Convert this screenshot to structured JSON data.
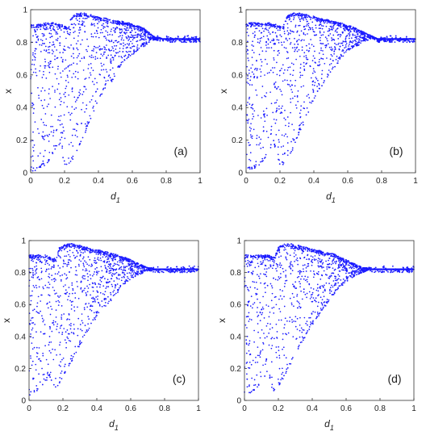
{
  "figure": {
    "panel_labels": [
      "(a)",
      "(b)",
      "(c)",
      "(d)"
    ]
  },
  "chart_data": [
    {
      "type": "scatter",
      "panel_label": "(a)",
      "xlabel": "d1",
      "ylabel": "x",
      "xlim": [
        0,
        1
      ],
      "ylim": [
        0,
        1
      ],
      "xticks": [
        "0",
        "0.2",
        "0.4",
        "0.6",
        "0.8",
        "1"
      ],
      "yticks": [
        "0",
        "0.2",
        "0.4",
        "0.6",
        "0.8",
        "1"
      ],
      "grid": false,
      "point_color": "#1a1aff",
      "x": [
        0.0,
        0.02,
        0.04,
        0.06,
        0.08,
        0.1,
        0.12,
        0.14,
        0.16,
        0.18,
        0.2,
        0.22,
        0.24,
        0.26,
        0.28,
        0.3,
        0.32,
        0.34,
        0.36,
        0.38,
        0.4,
        0.42,
        0.44,
        0.46,
        0.48,
        0.5,
        0.52,
        0.54,
        0.56,
        0.58,
        0.6,
        0.62,
        0.64,
        0.66,
        0.68,
        0.7,
        0.72,
        0.74,
        0.76,
        0.78,
        0.8,
        0.82,
        0.84,
        0.86,
        0.88,
        0.9,
        0.92,
        0.94,
        0.96,
        0.98,
        1.0
      ],
      "y_min": [
        0.01,
        0.01,
        0.02,
        0.03,
        0.04,
        0.06,
        0.09,
        0.13,
        0.18,
        0.14,
        0.05,
        0.05,
        0.07,
        0.1,
        0.14,
        0.19,
        0.24,
        0.29,
        0.34,
        0.39,
        0.44,
        0.48,
        0.52,
        0.55,
        0.56,
        0.6,
        0.64,
        0.67,
        0.69,
        0.71,
        0.72,
        0.74,
        0.76,
        0.77,
        0.78,
        0.8,
        0.81,
        0.82,
        0.82,
        0.82,
        0.82,
        0.82,
        0.82,
        0.82,
        0.82,
        0.82,
        0.82,
        0.82,
        0.82,
        0.82,
        0.82
      ],
      "y_max": [
        0.91,
        0.91,
        0.91,
        0.91,
        0.92,
        0.92,
        0.92,
        0.92,
        0.91,
        0.91,
        0.9,
        0.89,
        0.96,
        0.97,
        0.98,
        0.98,
        0.98,
        0.97,
        0.97,
        0.96,
        0.96,
        0.95,
        0.95,
        0.94,
        0.94,
        0.93,
        0.93,
        0.93,
        0.92,
        0.92,
        0.91,
        0.9,
        0.9,
        0.89,
        0.88,
        0.86,
        0.84,
        0.83,
        0.83,
        0.82,
        0.82,
        0.82,
        0.82,
        0.82,
        0.82,
        0.82,
        0.82,
        0.82,
        0.82,
        0.82,
        0.82
      ]
    },
    {
      "type": "scatter",
      "panel_label": "(b)",
      "xlabel": "d1",
      "ylabel": "x",
      "xlim": [
        0,
        1
      ],
      "ylim": [
        0,
        1
      ],
      "xticks": [
        "0",
        "0.2",
        "0.4",
        "0.6",
        "0.8",
        "1"
      ],
      "yticks": [
        "0",
        "0.2",
        "0.4",
        "0.6",
        "0.8",
        "1"
      ],
      "grid": false,
      "point_color": "#1a1aff",
      "x": [
        0.0,
        0.02,
        0.04,
        0.06,
        0.08,
        0.1,
        0.12,
        0.14,
        0.16,
        0.18,
        0.2,
        0.22,
        0.24,
        0.26,
        0.28,
        0.3,
        0.32,
        0.34,
        0.36,
        0.38,
        0.4,
        0.42,
        0.44,
        0.46,
        0.48,
        0.5,
        0.52,
        0.54,
        0.56,
        0.58,
        0.6,
        0.62,
        0.64,
        0.66,
        0.68,
        0.7,
        0.72,
        0.74,
        0.76,
        0.78,
        0.8,
        0.82,
        0.84,
        0.86,
        0.88,
        0.9,
        0.92,
        0.94,
        0.96,
        0.98,
        1.0
      ],
      "y_min": [
        0.01,
        0.02,
        0.02,
        0.03,
        0.05,
        0.07,
        0.1,
        0.14,
        0.19,
        0.12,
        0.04,
        0.05,
        0.08,
        0.11,
        0.15,
        0.2,
        0.25,
        0.3,
        0.35,
        0.4,
        0.45,
        0.49,
        0.52,
        0.55,
        0.58,
        0.61,
        0.64,
        0.67,
        0.7,
        0.72,
        0.74,
        0.76,
        0.77,
        0.78,
        0.79,
        0.8,
        0.81,
        0.82,
        0.82,
        0.82,
        0.82,
        0.82,
        0.82,
        0.82,
        0.82,
        0.82,
        0.82,
        0.82,
        0.82,
        0.82,
        0.82
      ],
      "y_max": [
        0.91,
        0.92,
        0.92,
        0.92,
        0.92,
        0.92,
        0.92,
        0.92,
        0.91,
        0.91,
        0.9,
        0.9,
        0.96,
        0.97,
        0.98,
        0.98,
        0.98,
        0.97,
        0.97,
        0.96,
        0.96,
        0.95,
        0.95,
        0.94,
        0.94,
        0.93,
        0.93,
        0.92,
        0.92,
        0.91,
        0.9,
        0.9,
        0.89,
        0.88,
        0.87,
        0.86,
        0.85,
        0.84,
        0.83,
        0.82,
        0.82,
        0.82,
        0.82,
        0.82,
        0.82,
        0.82,
        0.82,
        0.82,
        0.82,
        0.82,
        0.82
      ]
    },
    {
      "type": "scatter",
      "panel_label": "(c)",
      "xlabel": "d1",
      "ylabel": "x",
      "xlim": [
        0,
        1
      ],
      "ylim": [
        0,
        1
      ],
      "xticks": [
        "0",
        "0.2",
        "0.4",
        "0.6",
        "0.8",
        "1"
      ],
      "yticks": [
        "0",
        "0.2",
        "0.4",
        "0.6",
        "0.8",
        "1"
      ],
      "grid": false,
      "point_color": "#1a1aff",
      "x": [
        0.0,
        0.02,
        0.04,
        0.06,
        0.08,
        0.1,
        0.12,
        0.14,
        0.16,
        0.18,
        0.2,
        0.22,
        0.24,
        0.26,
        0.28,
        0.3,
        0.32,
        0.34,
        0.36,
        0.38,
        0.4,
        0.42,
        0.44,
        0.46,
        0.48,
        0.5,
        0.52,
        0.54,
        0.56,
        0.58,
        0.6,
        0.62,
        0.64,
        0.66,
        0.68,
        0.7,
        0.72,
        0.74,
        0.76,
        0.78,
        0.8,
        0.82,
        0.84,
        0.86,
        0.88,
        0.9,
        0.92,
        0.94,
        0.96,
        0.98,
        1.0
      ],
      "y_min": [
        0.03,
        0.04,
        0.05,
        0.07,
        0.09,
        0.12,
        0.15,
        0.11,
        0.06,
        0.1,
        0.14,
        0.18,
        0.22,
        0.26,
        0.3,
        0.34,
        0.38,
        0.42,
        0.46,
        0.49,
        0.52,
        0.55,
        0.57,
        0.6,
        0.62,
        0.64,
        0.67,
        0.7,
        0.72,
        0.74,
        0.76,
        0.77,
        0.78,
        0.79,
        0.8,
        0.81,
        0.81,
        0.82,
        0.82,
        0.82,
        0.82,
        0.82,
        0.82,
        0.82,
        0.82,
        0.82,
        0.82,
        0.82,
        0.82,
        0.82,
        0.82
      ],
      "y_max": [
        0.91,
        0.91,
        0.91,
        0.91,
        0.91,
        0.91,
        0.9,
        0.89,
        0.89,
        0.96,
        0.97,
        0.98,
        0.98,
        0.98,
        0.97,
        0.97,
        0.96,
        0.96,
        0.95,
        0.95,
        0.94,
        0.94,
        0.93,
        0.93,
        0.92,
        0.92,
        0.91,
        0.9,
        0.9,
        0.89,
        0.88,
        0.87,
        0.86,
        0.85,
        0.84,
        0.83,
        0.83,
        0.82,
        0.82,
        0.82,
        0.82,
        0.82,
        0.82,
        0.82,
        0.82,
        0.82,
        0.82,
        0.82,
        0.82,
        0.82,
        0.82
      ]
    },
    {
      "type": "scatter",
      "panel_label": "(d)",
      "xlabel": "d1",
      "ylabel": "x",
      "xlim": [
        0,
        1
      ],
      "ylim": [
        0,
        1
      ],
      "xticks": [
        "0",
        "0.2",
        "0.4",
        "0.6",
        "0.8",
        "1"
      ],
      "yticks": [
        "0",
        "0.2",
        "0.4",
        "0.6",
        "0.8",
        "1"
      ],
      "grid": false,
      "point_color": "#1a1aff",
      "x": [
        0.0,
        0.02,
        0.04,
        0.06,
        0.08,
        0.1,
        0.12,
        0.14,
        0.16,
        0.18,
        0.2,
        0.22,
        0.24,
        0.26,
        0.28,
        0.3,
        0.32,
        0.34,
        0.36,
        0.38,
        0.4,
        0.42,
        0.44,
        0.46,
        0.48,
        0.5,
        0.52,
        0.54,
        0.56,
        0.58,
        0.6,
        0.62,
        0.64,
        0.66,
        0.68,
        0.7,
        0.72,
        0.74,
        0.76,
        0.78,
        0.8,
        0.82,
        0.84,
        0.86,
        0.88,
        0.9,
        0.92,
        0.94,
        0.96,
        0.98,
        1.0
      ],
      "y_min": [
        0.02,
        0.03,
        0.04,
        0.06,
        0.08,
        0.11,
        0.15,
        0.19,
        0.08,
        0.05,
        0.08,
        0.12,
        0.16,
        0.2,
        0.24,
        0.28,
        0.32,
        0.36,
        0.4,
        0.44,
        0.47,
        0.5,
        0.53,
        0.56,
        0.59,
        0.62,
        0.65,
        0.68,
        0.7,
        0.72,
        0.74,
        0.76,
        0.77,
        0.78,
        0.79,
        0.8,
        0.81,
        0.82,
        0.82,
        0.82,
        0.82,
        0.82,
        0.82,
        0.82,
        0.82,
        0.82,
        0.82,
        0.82,
        0.82,
        0.82,
        0.82
      ],
      "y_max": [
        0.91,
        0.91,
        0.91,
        0.91,
        0.91,
        0.91,
        0.91,
        0.91,
        0.9,
        0.9,
        0.96,
        0.97,
        0.98,
        0.98,
        0.98,
        0.97,
        0.97,
        0.96,
        0.96,
        0.95,
        0.95,
        0.94,
        0.94,
        0.93,
        0.93,
        0.92,
        0.92,
        0.91,
        0.9,
        0.89,
        0.88,
        0.87,
        0.86,
        0.85,
        0.84,
        0.83,
        0.83,
        0.82,
        0.82,
        0.82,
        0.82,
        0.82,
        0.82,
        0.82,
        0.82,
        0.82,
        0.82,
        0.82,
        0.82,
        0.82,
        0.82
      ]
    }
  ]
}
